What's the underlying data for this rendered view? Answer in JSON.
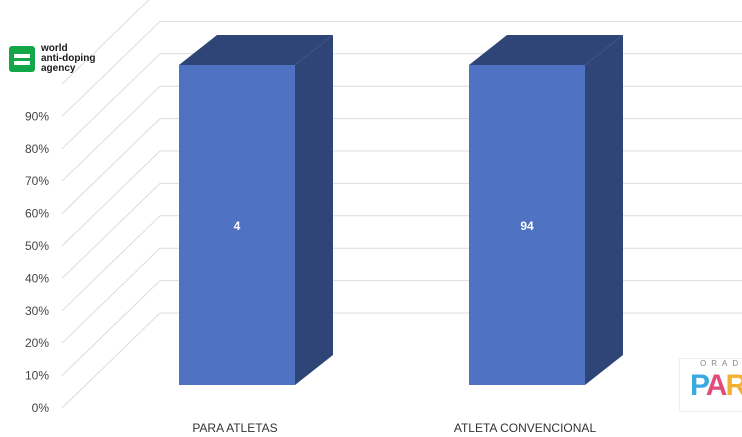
{
  "logo": {
    "line1": "world",
    "line2": "anti-doping",
    "line3": "agency",
    "mark_color": "#12a84a"
  },
  "corner_logo": {
    "top_text": "ORAD",
    "mark_text": "PAR",
    "letter_colors": [
      "#3ba9e0",
      "#e14c7a",
      "#f2b132"
    ]
  },
  "colors": {
    "bar_front": "#4f72c3",
    "bar_side": "#304577",
    "bar_top": "#304577",
    "grid": "#dcdcdc"
  },
  "chart_data": {
    "type": "bar",
    "title": "",
    "xlabel": "",
    "ylabel": "",
    "ylim": [
      0,
      100
    ],
    "y_ticks": [
      "0%",
      "10%",
      "20%",
      "30%",
      "40%",
      "50%",
      "60%",
      "70%",
      "80%",
      "90%"
    ],
    "categories": [
      "PARA ATLETAS",
      "ATLETA CONVENCIONAL"
    ],
    "values": [
      100,
      100
    ],
    "data_labels": [
      "4",
      "94"
    ],
    "grid": true,
    "legend": "none",
    "three_d": true
  }
}
